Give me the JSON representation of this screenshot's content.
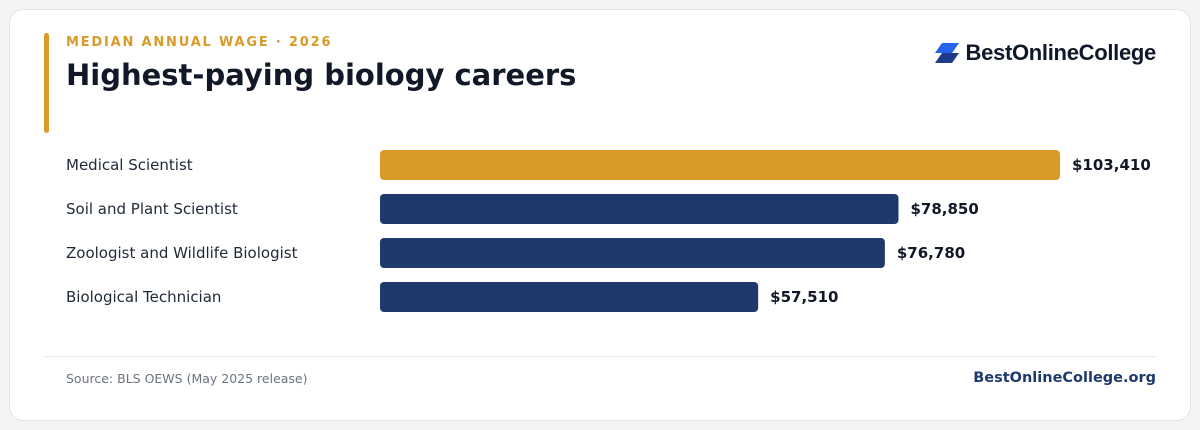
{
  "header": {
    "eyebrow": "MEDIAN ANNUAL WAGE · 2026",
    "title": "Highest-paying biology careers"
  },
  "brand": {
    "name": "BestOnlineCollege",
    "icon": "brand-logo-icon"
  },
  "footer": {
    "source": "Source: BLS OEWS (May 2025 release)",
    "site": "BestOnlineCollege.org"
  },
  "colors": {
    "gold": "#DA9A29",
    "navy": "#1E3A6C",
    "title": "#111827"
  },
  "chart_data": {
    "type": "bar",
    "orientation": "horizontal",
    "categories": [
      "Medical Scientist",
      "Soil and Plant Scientist",
      "Zoologist and Wildlife Biologist",
      "Biological Technician"
    ],
    "values": [
      103410,
      78850,
      76780,
      57510
    ],
    "value_labels": [
      "$103,410",
      "$78,850",
      "$76,780",
      "$57,510"
    ],
    "highlight_index": 0,
    "xlim": [
      0,
      103410
    ],
    "title": "Highest-paying biology careers",
    "xlabel": "",
    "ylabel": "",
    "grid": false,
    "legend": "none"
  }
}
